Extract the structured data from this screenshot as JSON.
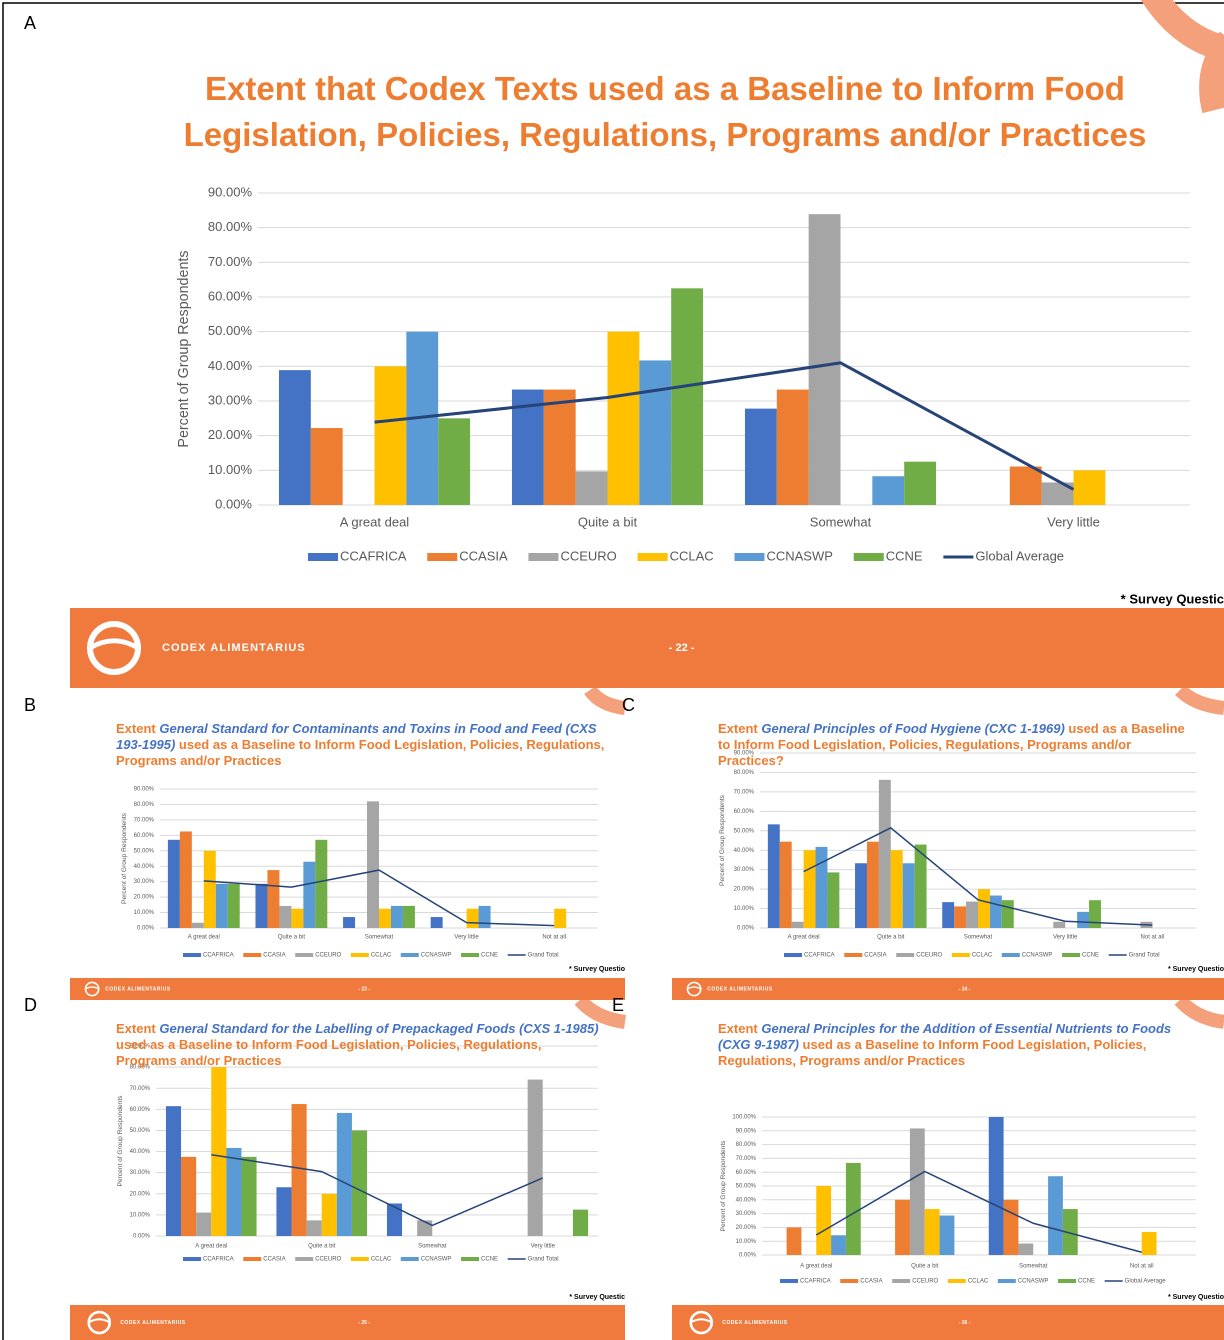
{
  "chart_data": [
    {
      "panel": "A",
      "type": "bar",
      "title": "Extent that Codex Texts used as a Baseline to Inform Food Legislation, Policies, Regulations, Programs and/or Practices",
      "y_label": "Percent of Group Respondents",
      "categories": [
        "A great deal",
        "Quite a bit",
        "Somewhat",
        "Very little"
      ],
      "series": [
        {
          "name": "CCAFRICA",
          "color": "#4472c4",
          "values": [
            38.9,
            33.3,
            27.8,
            0
          ]
        },
        {
          "name": "CCASIA",
          "color": "#ed7d31",
          "values": [
            22.2,
            33.3,
            33.3,
            11.1
          ]
        },
        {
          "name": "CCEURO",
          "color": "#a5a5a5",
          "values": [
            0,
            9.7,
            83.9,
            6.5
          ]
        },
        {
          "name": "CCLAC",
          "color": "#ffc000",
          "values": [
            40,
            50,
            0,
            10
          ]
        },
        {
          "name": "CCNASWP",
          "color": "#5b9bd5",
          "values": [
            50,
            41.7,
            8.3,
            0
          ]
        },
        {
          "name": "CCNE",
          "color": "#70ad47",
          "values": [
            25,
            62.5,
            12.5,
            0
          ]
        },
        {
          "name": "Global Average",
          "color": "#264478",
          "type": "line",
          "values": [
            23.9,
            31,
            41,
            4.5
          ]
        }
      ],
      "ylim": [
        0,
        90
      ],
      "yticks": [
        {
          "value": 0,
          "label": "0.00%"
        },
        {
          "value": 10,
          "label": "10.00%"
        },
        {
          "value": 20,
          "label": "20.00%"
        },
        {
          "value": 30,
          "label": "30.00%"
        },
        {
          "value": 40,
          "label": "40.00%"
        },
        {
          "value": 50,
          "label": "50.00%"
        },
        {
          "value": 60,
          "label": "60.00%"
        },
        {
          "value": 70,
          "label": "70.00%"
        },
        {
          "value": 80,
          "label": "80.00%"
        },
        {
          "value": 90,
          "label": "90.00%"
        }
      ],
      "grid": true,
      "footer": "CODEX ALIMENTARIUS",
      "page": "- 22 -",
      "note": "* Survey Questic"
    },
    {
      "panel": "B",
      "type": "bar",
      "title": [
        "Extent",
        "General Standard for Contaminants and Toxins in Food and Feed (CXS 193-1995)",
        "used as a Baseline to Inform Food Legislation, Policies, Regulations, Programs and/or Practices"
      ],
      "y_label": "Percent of Group Respondents",
      "categories": [
        "A great deal",
        "Quite a bit",
        "Somewhat",
        "Very little",
        "Not at all"
      ],
      "series": [
        {
          "name": "CCAFRICA",
          "color": "#4472c4",
          "values": [
            57.1,
            28.6,
            7.1,
            7.1,
            0
          ]
        },
        {
          "name": "CCASIA",
          "color": "#ed7d31",
          "values": [
            62.5,
            37.5,
            0,
            0,
            0
          ]
        },
        {
          "name": "CCEURO",
          "color": "#a5a5a5",
          "values": [
            3.4,
            14.3,
            82,
            0,
            0
          ]
        },
        {
          "name": "CCLAC",
          "color": "#ffc000",
          "values": [
            50,
            12.5,
            12.5,
            12.5,
            12.5
          ]
        },
        {
          "name": "CCNASWP",
          "color": "#5b9bd5",
          "values": [
            28.6,
            42.9,
            14.3,
            14.3,
            0
          ]
        },
        {
          "name": "CCNE",
          "color": "#70ad47",
          "values": [
            28.6,
            57.1,
            14.3,
            0,
            0
          ]
        },
        {
          "name": "Grand Total",
          "color": "#264478",
          "type": "line",
          "values": [
            30.5,
            26.5,
            37.5,
            3.5,
            1.5
          ]
        }
      ],
      "ylim": [
        0,
        90
      ],
      "yticks": [
        {
          "value": 0,
          "label": "0.00%"
        },
        {
          "value": 10,
          "label": "10.00%"
        },
        {
          "value": 20,
          "label": "20.00%"
        },
        {
          "value": 30,
          "label": "30.00%"
        },
        {
          "value": 40,
          "label": "40.00%"
        },
        {
          "value": 50,
          "label": "50.00%"
        },
        {
          "value": 60,
          "label": "60.00%"
        },
        {
          "value": 70,
          "label": "70.00%"
        },
        {
          "value": 80,
          "label": "80.00%"
        },
        {
          "value": 90,
          "label": "90.00%"
        }
      ],
      "grid": true,
      "footer": "CODEX ALIMENTARIUS",
      "page": "- 23 -",
      "note": "* Survey Questio"
    },
    {
      "panel": "C",
      "type": "bar",
      "title": [
        "Extent",
        "General Principles of Food Hygiene (CXC 1-1969)",
        "used as a Baseline to Inform Food Legislation, Policies, Regulations, Programs and/or Practices?"
      ],
      "y_label": "Percent of Group Respondents",
      "categories": [
        "A great deal",
        "Quite a bit",
        "Somewhat",
        "Very little",
        "Not at all"
      ],
      "series": [
        {
          "name": "CCAFRICA",
          "color": "#4472c4",
          "values": [
            53.3,
            33.3,
            13.3,
            0,
            0
          ]
        },
        {
          "name": "CCASIA",
          "color": "#ed7d31",
          "values": [
            44.4,
            44.4,
            11.1,
            0,
            0
          ]
        },
        {
          "name": "CCEURO",
          "color": "#a5a5a5",
          "values": [
            3.2,
            76.2,
            13.6,
            3.2,
            3.2
          ]
        },
        {
          "name": "CCLAC",
          "color": "#ffc000",
          "values": [
            40,
            40,
            20,
            0,
            0
          ]
        },
        {
          "name": "CCNASWP",
          "color": "#5b9bd5",
          "values": [
            41.7,
            33.3,
            16.7,
            8.3,
            0
          ]
        },
        {
          "name": "CCNE",
          "color": "#70ad47",
          "values": [
            28.6,
            42.9,
            14.3,
            14.3,
            0
          ]
        },
        {
          "name": "Grand Total",
          "color": "#264478",
          "type": "line",
          "values": [
            29,
            51.5,
            14.5,
            3.5,
            1.5
          ]
        }
      ],
      "ylim": [
        0,
        90
      ],
      "yticks": [
        {
          "value": 0,
          "label": "0.00%"
        },
        {
          "value": 10,
          "label": "10.00%"
        },
        {
          "value": 20,
          "label": "20.00%"
        },
        {
          "value": 30,
          "label": "30.00%"
        },
        {
          "value": 40,
          "label": "40.00%"
        },
        {
          "value": 50,
          "label": "50.00%"
        },
        {
          "value": 60,
          "label": "60.00%"
        },
        {
          "value": 70,
          "label": "70.00%"
        },
        {
          "value": 80,
          "label": "80.00%"
        },
        {
          "value": 90,
          "label": "90.00%"
        }
      ],
      "grid": true,
      "footer": "CODEX ALIMENTARIUS",
      "page": "- 24 -",
      "note": "* Survey Questio"
    },
    {
      "panel": "D",
      "type": "bar",
      "title": [
        "Extent",
        "General Standard for the Labelling of Prepackaged Foods (CXS 1-1985)",
        "used as a Baseline to Inform Food Legislation, Policies, Regulations, Programs and/or Practices"
      ],
      "y_label": "Percent of Group Respondents",
      "categories": [
        "A great deal",
        "Quite a bit",
        "Somewhat",
        "Very little"
      ],
      "series": [
        {
          "name": "CCAFRICA",
          "color": "#4472c4",
          "values": [
            61.5,
            23.1,
            15.4,
            0
          ]
        },
        {
          "name": "CCASIA",
          "color": "#ed7d31",
          "values": [
            37.5,
            62.5,
            0,
            0
          ]
        },
        {
          "name": "CCEURO",
          "color": "#a5a5a5",
          "values": [
            11.1,
            7.4,
            7.4,
            74.1
          ]
        },
        {
          "name": "CCLAC",
          "color": "#ffc000",
          "values": [
            80,
            20,
            0,
            0
          ]
        },
        {
          "name": "CCNASWP",
          "color": "#5b9bd5",
          "values": [
            41.7,
            58.3,
            0,
            0
          ]
        },
        {
          "name": "CCNE",
          "color": "#70ad47",
          "values": [
            37.5,
            50,
            0,
            12.5
          ]
        },
        {
          "name": "Grand Total",
          "color": "#264478",
          "type": "line",
          "values": [
            38.5,
            30.5,
            5,
            27.5
          ]
        }
      ],
      "ylim": [
        0,
        90
      ],
      "yticks": [
        {
          "value": 0,
          "label": "0.00%"
        },
        {
          "value": 10,
          "label": "10.00%"
        },
        {
          "value": 20,
          "label": "20.00%"
        },
        {
          "value": 30,
          "label": "30.00%"
        },
        {
          "value": 40,
          "label": "40.00%"
        },
        {
          "value": 50,
          "label": "50.00%"
        },
        {
          "value": 60,
          "label": "60.00%"
        },
        {
          "value": 70,
          "label": "70.00%"
        },
        {
          "value": 80,
          "label": "80.00%"
        },
        {
          "value": 90,
          "label": "90.00%"
        }
      ],
      "grid": true,
      "footer": "CODEX ALIMENTARIUS",
      "page": "- 25 -",
      "note": "* Survey Questic"
    },
    {
      "panel": "E",
      "type": "bar",
      "title": [
        "Extent",
        "General Principles for the Addition of Essential Nutrients to Foods (CXG 9-1987)",
        "used as a Baseline to Inform Food Legislation, Policies, Regulations, Programs and/or Practices"
      ],
      "y_label": "Percent of Group Respondents",
      "categories": [
        "A great deal",
        "Quite a bit",
        "Somewhat",
        "Not at all"
      ],
      "series": [
        {
          "name": "CCAFRICA",
          "color": "#4472c4",
          "values": [
            0,
            0,
            100,
            0
          ]
        },
        {
          "name": "CCASIA",
          "color": "#ed7d31",
          "values": [
            20,
            40,
            40,
            0
          ]
        },
        {
          "name": "CCEURO",
          "color": "#a5a5a5",
          "values": [
            0,
            91.7,
            8.3,
            0
          ]
        },
        {
          "name": "CCLAC",
          "color": "#ffc000",
          "values": [
            50,
            33.3,
            0,
            16.7
          ]
        },
        {
          "name": "CCNASWP",
          "color": "#5b9bd5",
          "values": [
            14.3,
            28.6,
            57.1,
            0
          ]
        },
        {
          "name": "CCNE",
          "color": "#70ad47",
          "values": [
            66.7,
            0,
            33.3,
            0
          ]
        },
        {
          "name": "Global Average",
          "color": "#264478",
          "type": "line",
          "values": [
            14.5,
            60.5,
            23,
            2
          ]
        }
      ],
      "ylim": [
        0,
        100
      ],
      "yticks": [
        {
          "value": 0,
          "label": "0.00%"
        },
        {
          "value": 10,
          "label": "10.00%"
        },
        {
          "value": 20,
          "label": "20.00%"
        },
        {
          "value": 30,
          "label": "30.00%"
        },
        {
          "value": 40,
          "label": "40.00%"
        },
        {
          "value": 50,
          "label": "50.00%"
        },
        {
          "value": 60,
          "label": "60.00%"
        },
        {
          "value": 70,
          "label": "70.00%"
        },
        {
          "value": 80,
          "label": "80.00%"
        },
        {
          "value": 90,
          "label": "90.00%"
        },
        {
          "value": 100,
          "label": "100.00%"
        }
      ],
      "grid": true,
      "footer": "CODEX ALIMENTARIUS",
      "page": "- 26 -",
      "note": "* Survey Questio"
    }
  ]
}
